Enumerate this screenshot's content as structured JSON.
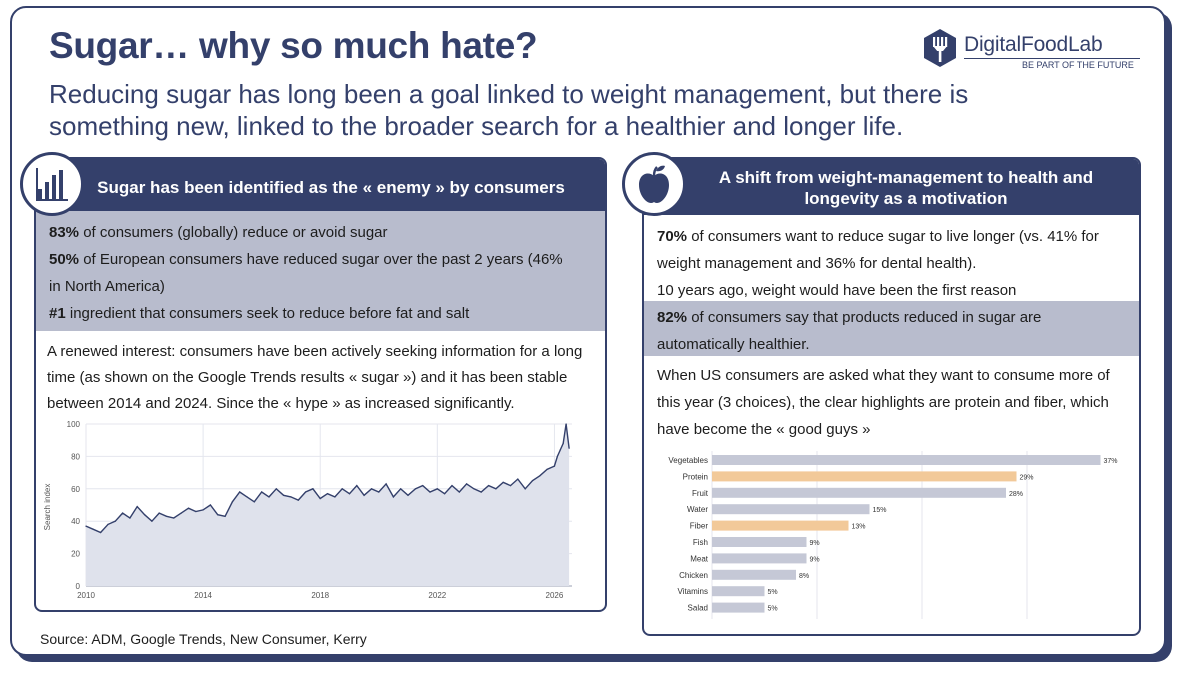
{
  "header": {
    "title": "Sugar… why so much hate?",
    "subtitle": "Reducing sugar has long been a goal linked to weight management, but there is something new, linked to the broader search for a healthier and longer life."
  },
  "brand": {
    "name": "DigitalFoodLab",
    "tagline": "BE PART OF THE FUTURE",
    "badge_icon": "fork-shield-icon",
    "color": "#34406b"
  },
  "colors": {
    "navy": "#34406b",
    "band": "#b8bccd",
    "bar_default": "#c5c8d6",
    "bar_highlight": "#f2c999",
    "line_fill": "#dfe2ec"
  },
  "left_panel": {
    "icon": "bar-chart-icon",
    "heading": "Sugar has been identified as the « enemy » by consumers",
    "stats": [
      {
        "value": "83%",
        "text": " of consumers (globally) reduce or avoid sugar"
      },
      {
        "value": "50%",
        "text": " of European consumers have reduced sugar over the past 2 years (46% in North America)"
      },
      {
        "value": "#1",
        "text": " ingredient that consumers seek to reduce before fat and salt"
      }
    ],
    "paragraph": "A renewed interest: consumers have been actively seeking information for a long time (as shown on the Google Trends results « sugar ») and it has been stable between 2014 and 2024. Since the « hype » as increased significantly."
  },
  "right_panel": {
    "icon": "apple-icon",
    "heading": "A shift from weight-management to health and longevity as a motivation",
    "stat1": {
      "value": "70%",
      "text": " of consumers want to reduce sugar to live longer (vs. 41% for weight management and 36% for dental health)."
    },
    "note": "10 years ago, weight would have been the first reason",
    "stat2": {
      "value": "82%",
      "text": " of consumers say that products reduced in sugar are automatically healthier."
    },
    "paragraph": "When US consumers are asked what they want to consume more of this year (3 choices), the clear highlights are protein and fiber, which have become the « good guys »"
  },
  "source": "Source: ADM, Google Trends, New Consumer, Kerry",
  "chart_data": [
    {
      "type": "area",
      "ylabel": "Search index",
      "xlabel": "",
      "xlim": [
        2010,
        2026.6
      ],
      "ylim": [
        0,
        100
      ],
      "yticks": [
        0,
        20,
        40,
        60,
        80,
        100
      ],
      "xticks": [
        2010,
        2014,
        2018,
        2022,
        2026
      ],
      "grid": true,
      "x": [
        2010.0,
        2010.25,
        2010.5,
        2010.75,
        2011.0,
        2011.25,
        2011.5,
        2011.75,
        2012.0,
        2012.25,
        2012.5,
        2012.75,
        2013.0,
        2013.25,
        2013.5,
        2013.75,
        2014.0,
        2014.25,
        2014.5,
        2014.75,
        2015.0,
        2015.25,
        2015.5,
        2015.75,
        2016.0,
        2016.25,
        2016.5,
        2016.75,
        2017.0,
        2017.25,
        2017.5,
        2017.75,
        2018.0,
        2018.25,
        2018.5,
        2018.75,
        2019.0,
        2019.25,
        2019.5,
        2019.75,
        2020.0,
        2020.25,
        2020.5,
        2020.75,
        2021.0,
        2021.25,
        2021.5,
        2021.75,
        2022.0,
        2022.25,
        2022.5,
        2022.75,
        2023.0,
        2023.25,
        2023.5,
        2023.75,
        2024.0,
        2024.25,
        2024.5,
        2024.75,
        2025.0,
        2025.25,
        2025.5,
        2025.75,
        2026.0,
        2026.1,
        2026.2,
        2026.3,
        2026.4,
        2026.5
      ],
      "values": [
        37,
        35,
        33,
        38,
        40,
        45,
        42,
        49,
        44,
        40,
        45,
        43,
        42,
        45,
        48,
        46,
        47,
        50,
        44,
        43,
        52,
        58,
        55,
        52,
        58,
        55,
        60,
        56,
        55,
        53,
        58,
        60,
        54,
        57,
        55,
        60,
        57,
        62,
        56,
        60,
        58,
        63,
        55,
        60,
        56,
        60,
        62,
        58,
        60,
        57,
        62,
        58,
        63,
        60,
        58,
        62,
        60,
        64,
        62,
        66,
        60,
        65,
        68,
        72,
        74,
        80,
        84,
        88,
        100,
        85
      ]
    },
    {
      "type": "bar",
      "orientation": "horizontal",
      "categories": [
        "Vegetables",
        "Protein",
        "Fruit",
        "Water",
        "Fiber",
        "Fish",
        "Meat",
        "Chicken",
        "Vitamins",
        "Salad"
      ],
      "values": [
        37,
        29,
        28,
        15,
        13,
        9,
        9,
        8,
        5,
        5
      ],
      "value_labels": [
        "37%",
        "29%",
        "28%",
        "15%",
        "13%",
        "9%",
        "9%",
        "8%",
        "5%",
        "5%"
      ],
      "highlighted": [
        "Protein",
        "Fiber"
      ],
      "xlim": [
        0,
        38
      ],
      "grid": true
    }
  ]
}
